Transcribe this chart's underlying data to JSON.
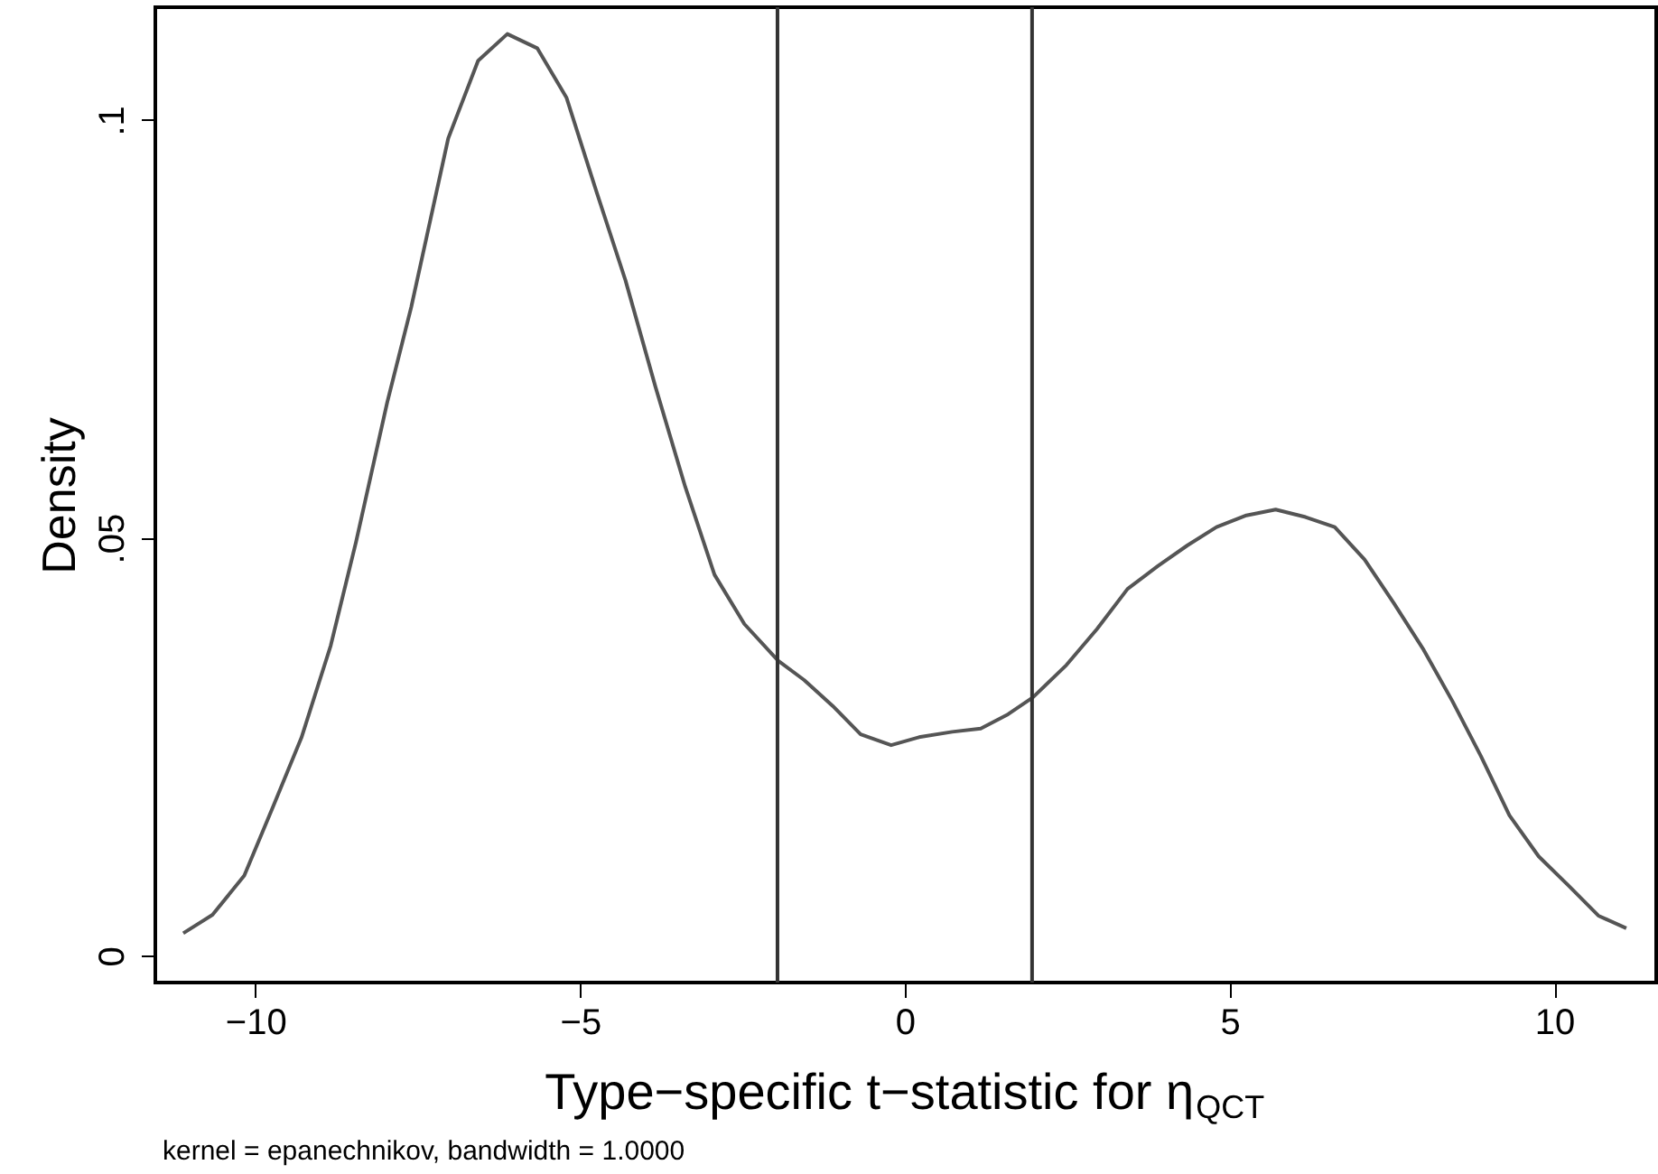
{
  "chart_data": {
    "type": "line",
    "xlabel": "Type−specific t−statistic for η$_{QCT}$",
    "ylabel": "Density",
    "annotations": [
      "kernel = epanechnikov, bandwidth = 1.0000"
    ],
    "series": [
      {
        "color": "#555555",
        "x": [
          -11.11,
          -10.66,
          -10.17,
          -9.73,
          -9.29,
          -8.84,
          -8.45,
          -7.97,
          -7.6,
          -7.03,
          -6.57,
          -6.12,
          -5.66,
          -5.21,
          -4.75,
          -4.3,
          -3.84,
          -3.38,
          -2.93,
          -2.47,
          -1.95,
          -1.55,
          -1.11,
          -0.68,
          -0.21,
          0.24,
          0.73,
          1.17,
          1.59,
          1.97,
          2.49,
          2.96,
          3.43,
          3.89,
          4.35,
          4.8,
          5.26,
          5.71,
          6.17,
          6.62,
          7.08,
          7.53,
          7.99,
          8.43,
          8.87,
          9.31,
          9.76,
          10.22,
          10.68,
          11.11
        ],
        "values": [
          0.0027,
          0.0049,
          0.0096,
          0.0178,
          0.0261,
          0.0371,
          0.0495,
          0.0662,
          0.0776,
          0.0978,
          0.1071,
          0.1103,
          0.1086,
          0.1027,
          0.0915,
          0.0808,
          0.0681,
          0.0561,
          0.0456,
          0.0397,
          0.0353,
          0.033,
          0.0299,
          0.0265,
          0.0252,
          0.0262,
          0.0268,
          0.0272,
          0.0289,
          0.0309,
          0.0348,
          0.0391,
          0.0439,
          0.0466,
          0.0491,
          0.0513,
          0.0527,
          0.0534,
          0.0525,
          0.0513,
          0.0474,
          0.0422,
          0.0366,
          0.0305,
          0.0239,
          0.0168,
          0.0119,
          0.0084,
          0.0048,
          0.0033
        ]
      }
    ],
    "xlim": [
      -11.54,
      11.57
    ],
    "ylim": [
      -0.0032,
      0.1135
    ],
    "xticks": [
      {
        "value": -10,
        "label": "−10"
      },
      {
        "value": -5,
        "label": "−5"
      },
      0,
      5,
      10
    ],
    "yticks": [
      0,
      {
        "value": 0.05,
        "label": ".05"
      },
      {
        "value": 0.1,
        "label": ".1"
      }
    ],
    "ref_lines": [
      {
        "axis": "x",
        "value": -1.96,
        "color": "#333333"
      },
      {
        "axis": "x",
        "value": 1.96,
        "color": "#333333"
      }
    ],
    "grid": false,
    "marker": "none",
    "line_style": "solid"
  }
}
